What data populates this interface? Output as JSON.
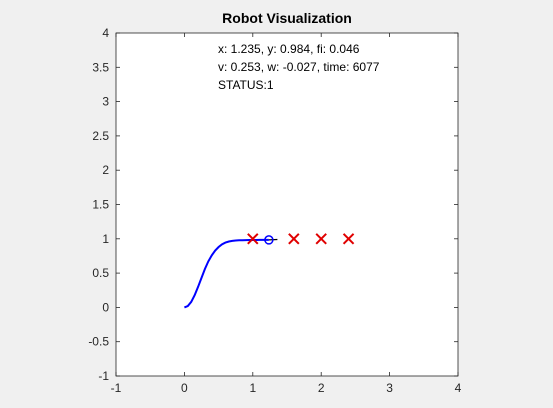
{
  "window": {
    "background": "#f0f0f0"
  },
  "chart_data": {
    "type": "line",
    "title": "Robot Visualization",
    "xlabel": "",
    "ylabel": "",
    "xlim": [
      -1,
      4
    ],
    "ylim": [
      -1,
      4
    ],
    "xticks": [
      -1,
      0,
      1,
      2,
      3,
      4
    ],
    "yticks": [
      -1,
      -0.5,
      0,
      0.5,
      1,
      1.5,
      2,
      2.5,
      3,
      3.5,
      4
    ],
    "xtick_labels": [
      "-1",
      "0",
      "1",
      "2",
      "3",
      "4"
    ],
    "ytick_labels": [
      "-1",
      "-0.5",
      "0",
      "0.5",
      "1",
      "1.5",
      "2",
      "2.5",
      "3",
      "3.5",
      "4"
    ],
    "grid": false,
    "series": [
      {
        "type": "line",
        "color": "#0000ff",
        "x": [
          0.0,
          0.05,
          0.1,
          0.15,
          0.2,
          0.25,
          0.3,
          0.35,
          0.4,
          0.45,
          0.5,
          0.55,
          0.6,
          0.65,
          0.7,
          0.75,
          0.8,
          0.85,
          0.9,
          0.95,
          1.0,
          1.05,
          1.1,
          1.15,
          1.2,
          1.235
        ],
        "y": [
          0.0,
          0.02,
          0.08,
          0.18,
          0.3,
          0.43,
          0.56,
          0.67,
          0.76,
          0.83,
          0.88,
          0.92,
          0.945,
          0.96,
          0.97,
          0.975,
          0.978,
          0.98,
          0.981,
          0.982,
          0.983,
          0.983,
          0.984,
          0.984,
          0.984,
          0.984
        ]
      },
      {
        "type": "line",
        "color": "#000000",
        "x": [
          1.235,
          1.36
        ],
        "y": [
          0.984,
          0.99
        ]
      },
      {
        "type": "scatter",
        "marker": "x",
        "color": "#e00000",
        "x": [
          1.0,
          1.6,
          2.0,
          2.4
        ],
        "y": [
          1.0,
          1.0,
          1.0,
          1.0
        ]
      },
      {
        "type": "scatter",
        "marker": "o",
        "color": "#0000ff",
        "x": [
          1.235
        ],
        "y": [
          0.984
        ]
      }
    ],
    "annotations": [
      "x: 1.235, y: 0.984, fi: 0.046",
      "v: 0.253, w: -0.027, time: 6077",
      "STATUS:1"
    ]
  }
}
